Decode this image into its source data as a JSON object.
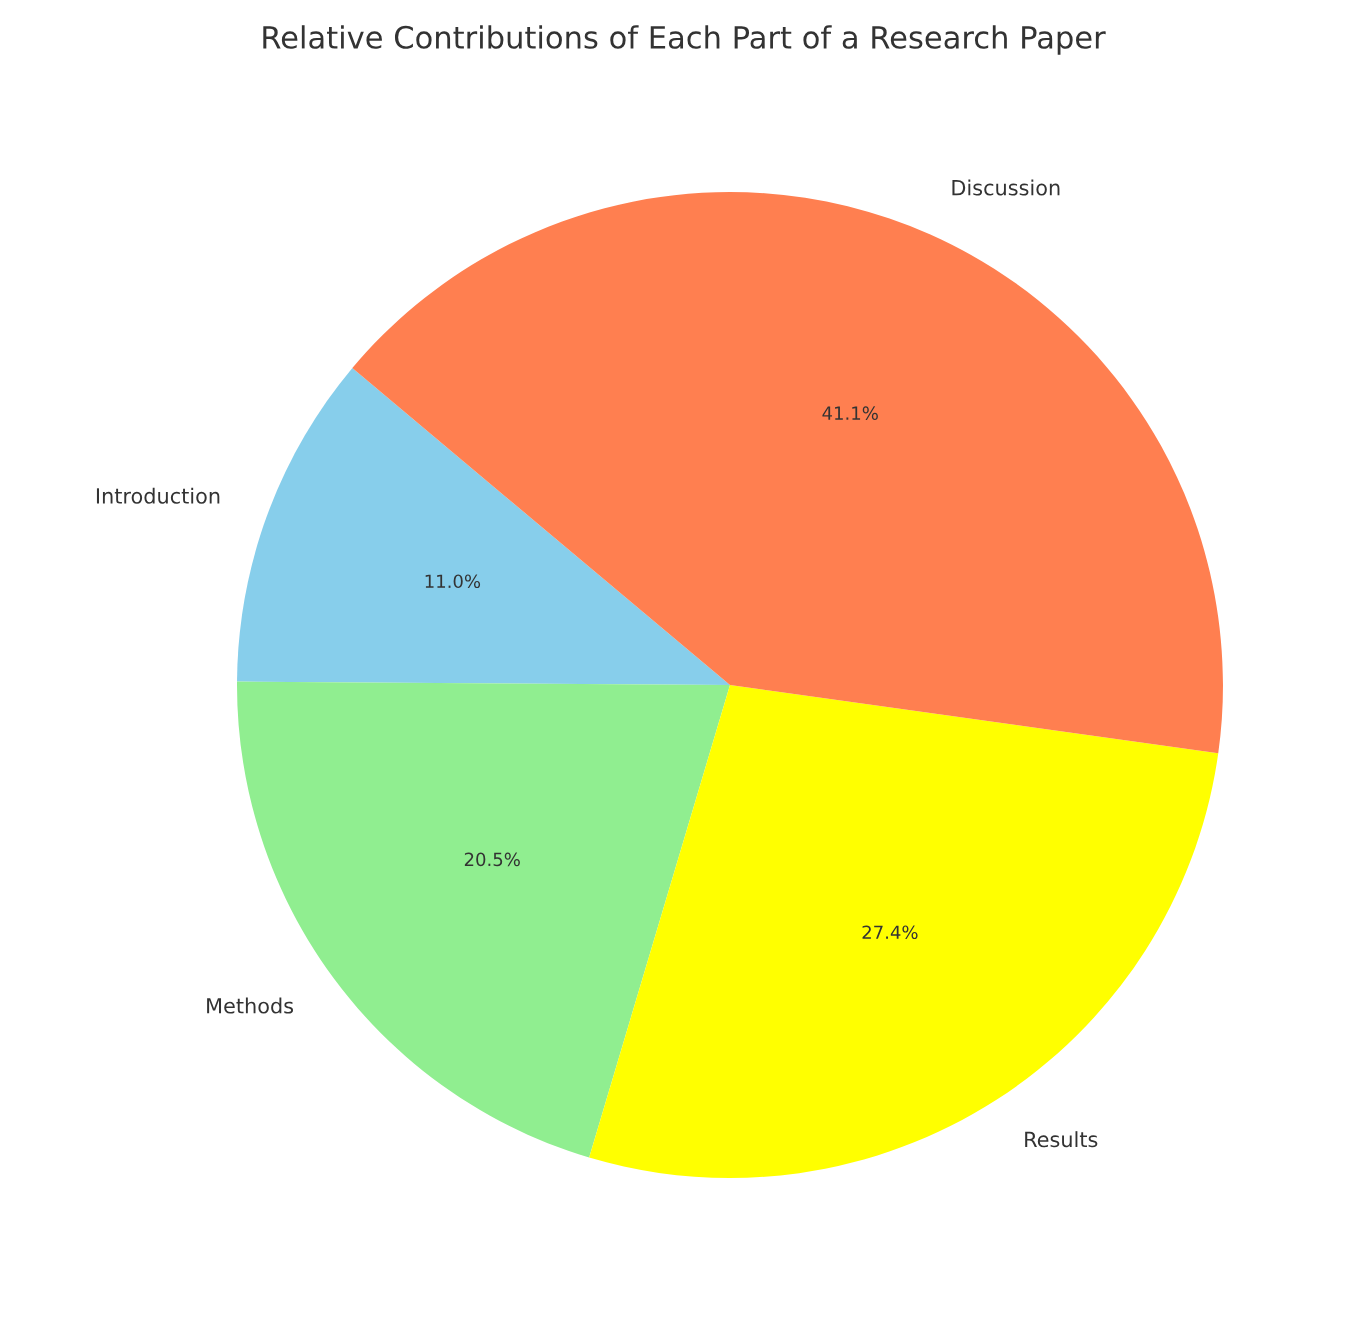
{
  "chart_data": {
    "type": "pie",
    "title": "Relative Contributions of Each Part of a Research Paper",
    "categories": [
      "Introduction",
      "Methods",
      "Results",
      "Discussion"
    ],
    "values": [
      11.0,
      20.5,
      27.4,
      41.1
    ],
    "colors": [
      "#87ceeb",
      "#90ee90",
      "#ffff00",
      "#ff7f50"
    ],
    "value_labels": [
      "11.0%",
      "20.5%",
      "27.4%",
      "41.1%"
    ]
  }
}
